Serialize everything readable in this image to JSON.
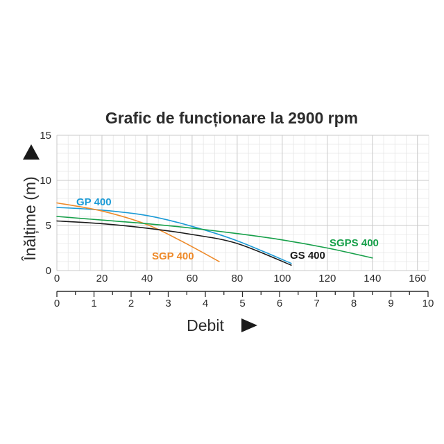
{
  "chart_data": {
    "type": "line",
    "title": "Grafic de funcționare la 2900 rpm",
    "ylabel": "Înălțime (m)",
    "xlabel": "Debit",
    "ylim": [
      0,
      15
    ],
    "xlim": [
      0,
      165
    ],
    "grid": true,
    "y_ticks": [
      "0",
      "5",
      "10",
      "15"
    ],
    "x_ticks": [
      "0",
      "20",
      "40",
      "60",
      "80",
      "100",
      "120",
      "140",
      "160"
    ],
    "x2_ticks": [
      "0",
      "1",
      "2",
      "3",
      "4",
      "5",
      "6",
      "7",
      "8",
      "9",
      "10"
    ],
    "x2_range": [
      0,
      10
    ],
    "series": [
      {
        "name": "GP 400",
        "color": "#1a9ad6",
        "points": [
          [
            0,
            7.0
          ],
          [
            20,
            6.7
          ],
          [
            40,
            6.1
          ],
          [
            60,
            4.9
          ],
          [
            80,
            3.3
          ],
          [
            104,
            0.8
          ]
        ]
      },
      {
        "name": "SGP 400",
        "color": "#ee8a2a",
        "points": [
          [
            0,
            7.5
          ],
          [
            20,
            6.6
          ],
          [
            40,
            5.1
          ],
          [
            55,
            3.3
          ],
          [
            72,
            1.0
          ]
        ]
      },
      {
        "name": "GS 400",
        "color": "#1a1a1a",
        "points": [
          [
            0,
            5.5
          ],
          [
            20,
            5.2
          ],
          [
            40,
            4.7
          ],
          [
            60,
            4.0
          ],
          [
            80,
            3.0
          ],
          [
            104,
            0.6
          ]
        ]
      },
      {
        "name": "SGPS 400",
        "color": "#17a04a",
        "points": [
          [
            0,
            6.0
          ],
          [
            20,
            5.6
          ],
          [
            40,
            5.2
          ],
          [
            60,
            4.7
          ],
          [
            80,
            4.1
          ],
          [
            100,
            3.4
          ],
          [
            120,
            2.5
          ],
          [
            140,
            1.4
          ]
        ]
      }
    ]
  }
}
